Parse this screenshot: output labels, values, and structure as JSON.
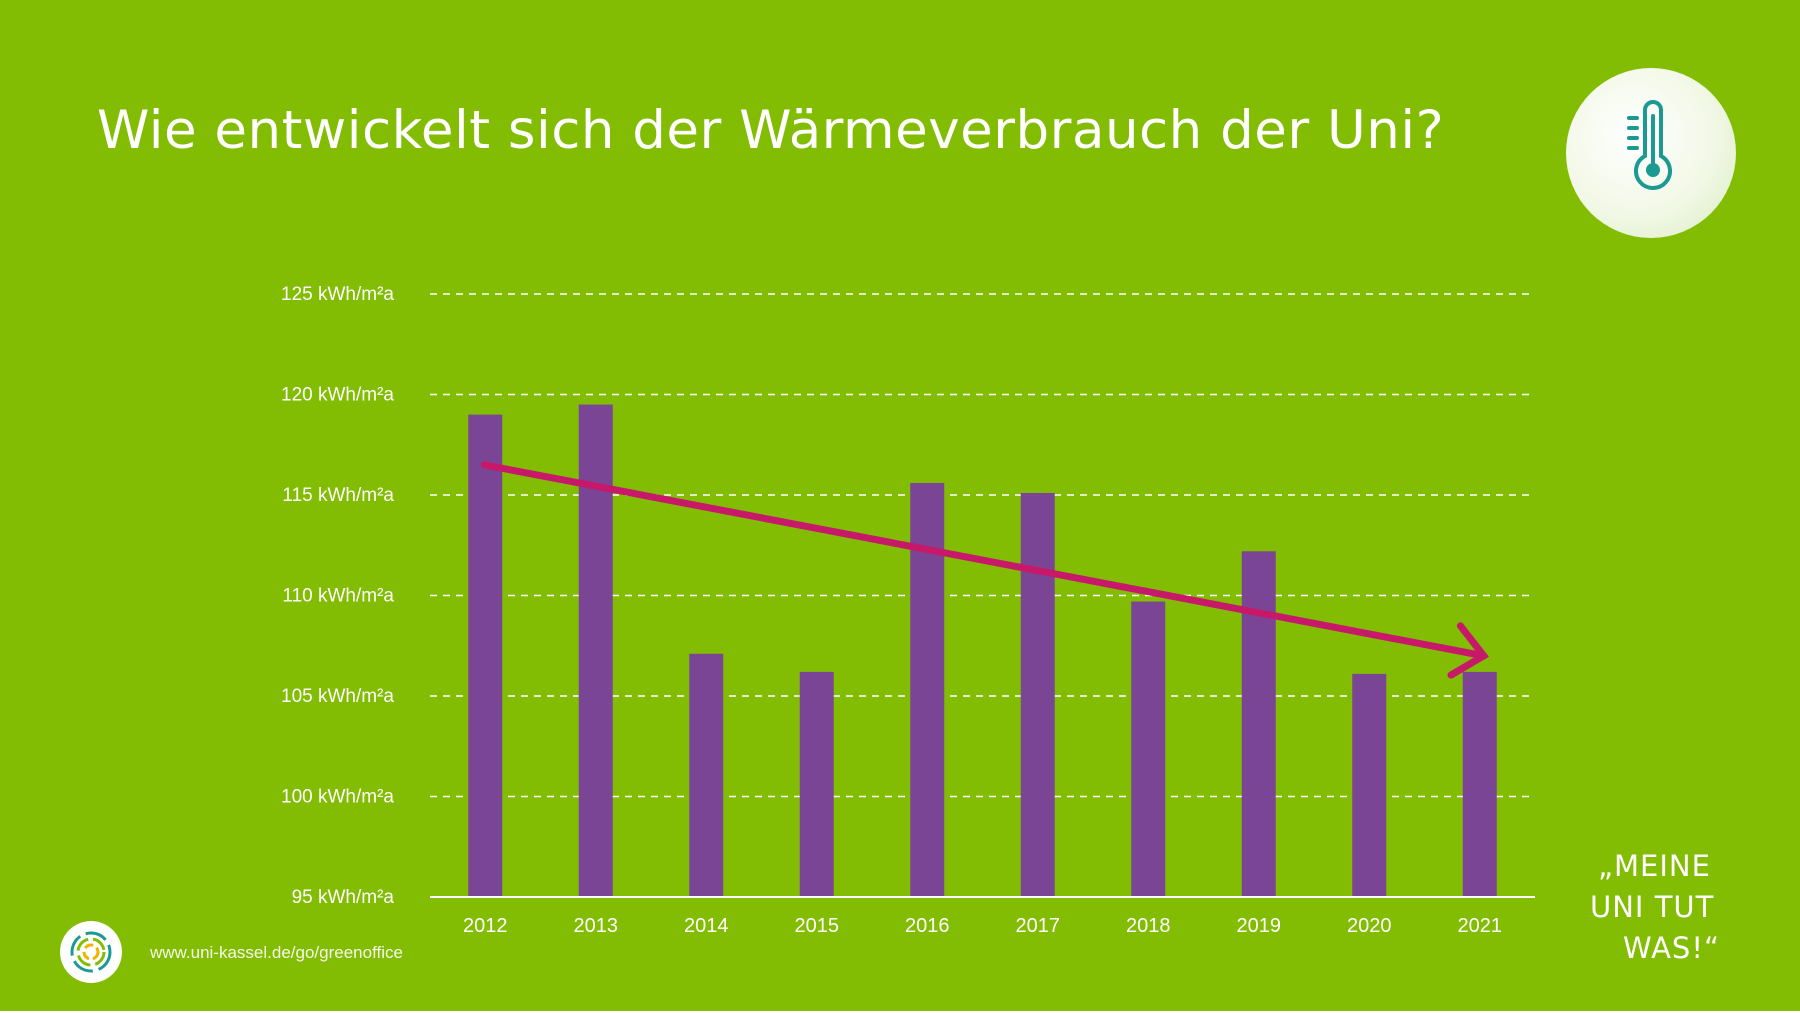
{
  "slide": {
    "title": "Wie entwickelt sich der Wärmeverbrauch der Uni?",
    "footer_url": "www.uni-kassel.de/go/greenoffice",
    "slogan": [
      "„MEINE",
      "UNI TUT",
      "WAS!“"
    ],
    "icons": {
      "badge": "thermometer-icon",
      "logo": "uni-kassel-logo-icon"
    }
  },
  "colors": {
    "background": "#82bd04",
    "bar": "#7b4596",
    "trend_arrow": "#c8186a",
    "gridline": "#ffffff",
    "text": "#ffffff",
    "icon": "#1b9a93"
  },
  "chart_data": {
    "type": "bar",
    "title": "Wie entwickelt sich der Wärmeverbrauch der Uni?",
    "xlabel": "",
    "ylabel": "",
    "categories": [
      "2012",
      "2013",
      "2014",
      "2015",
      "2016",
      "2017",
      "2018",
      "2019",
      "2020",
      "2021"
    ],
    "values": [
      119.0,
      119.5,
      107.1,
      106.2,
      115.6,
      115.1,
      109.7,
      112.2,
      106.1,
      106.2
    ],
    "ylim": [
      95,
      125
    ],
    "y_ticks": [
      95,
      100,
      105,
      110,
      115,
      120,
      125
    ],
    "y_tick_labels": [
      "95 kWh/m²a",
      "100 kWh/m²a",
      "105 kWh/m²a",
      "110 kWh/m²a",
      "115 kWh/m²a",
      "120 kWh/m²a",
      "125 kWh/m²a"
    ],
    "grid": "horizontal dashed",
    "annotations": [
      {
        "type": "trend-arrow",
        "from": {
          "x": "2012",
          "y": 116.5
        },
        "to": {
          "x": "2021",
          "y": 107.0
        }
      }
    ]
  }
}
